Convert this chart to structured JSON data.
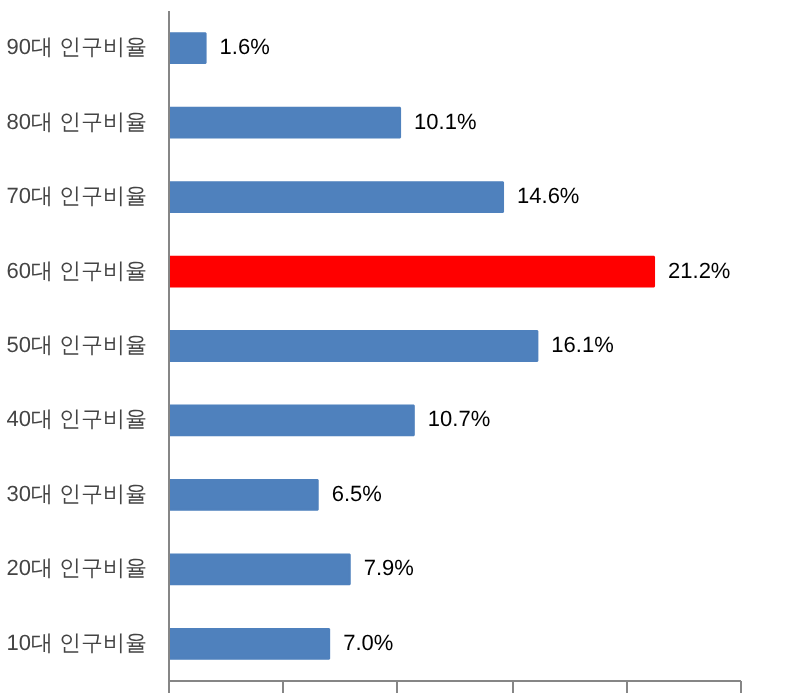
{
  "chart_data": {
    "type": "bar",
    "orientation": "horizontal",
    "categories": [
      "90대 인구비율",
      "80대 인구비율",
      "70대 인구비율",
      "60대 인구비율",
      "50대 인구비율",
      "40대 인구비율",
      "30대 인구비율",
      "20대 인구비율",
      "10대 인구비율"
    ],
    "values": [
      1.6,
      10.1,
      14.6,
      21.2,
      16.1,
      10.7,
      6.5,
      7.9,
      7.0
    ],
    "value_labels": [
      "1.6%",
      "10.1%",
      "14.6%",
      "21.2%",
      "16.1%",
      "10.7%",
      "6.5%",
      "7.9%",
      "7.0%"
    ],
    "colors": [
      "#4f81bd",
      "#4f81bd",
      "#4f81bd",
      "#ff0000",
      "#4f81bd",
      "#4f81bd",
      "#4f81bd",
      "#4f81bd",
      "#4f81bd"
    ],
    "xlim": [
      0,
      25
    ],
    "xticks": [
      {
        "value": 0,
        "label": null
      },
      {
        "value": 5,
        "label": null
      },
      {
        "value": 10,
        "label": null
      },
      {
        "value": 15,
        "label": null
      },
      {
        "value": 20,
        "label": null
      },
      {
        "value": 25,
        "label": null
      }
    ],
    "tick_labels": "y",
    "grid": false
  }
}
